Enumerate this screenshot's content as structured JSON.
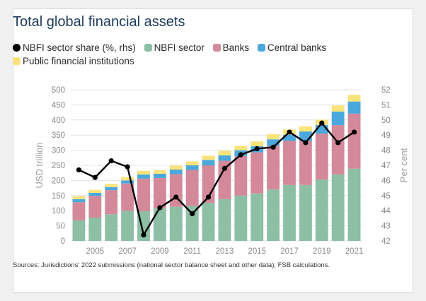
{
  "chart_data": {
    "type": "bar",
    "stacked": true,
    "title": "Total global financial assets",
    "ylabel": "USD trillion",
    "y2label": "Per cent",
    "ylim": [
      0,
      500
    ],
    "y2lim": [
      42,
      52
    ],
    "yticks": [
      "0",
      "50",
      "100",
      "150",
      "200",
      "250",
      "300",
      "350",
      "400",
      "450",
      "500"
    ],
    "y2ticks": [
      "42",
      "43",
      "44",
      "45",
      "46",
      "47",
      "48",
      "49",
      "50",
      "51",
      "52"
    ],
    "categories": [
      2004,
      2005,
      2006,
      2007,
      2008,
      2009,
      2010,
      2011,
      2012,
      2013,
      2014,
      2015,
      2016,
      2017,
      2018,
      2019,
      2020,
      2021
    ],
    "xtick_labels": [
      "2005",
      "2007",
      "2009",
      "2011",
      "2013",
      "2015",
      "2017",
      "2019",
      "2021"
    ],
    "series": [
      {
        "name": "NBFI sector",
        "color": "#8dbfa4",
        "values": [
          68,
          77,
          88,
          100,
          98,
          108,
          113,
          116,
          126,
          138,
          150,
          157,
          170,
          185,
          185,
          203,
          220,
          239
        ]
      },
      {
        "name": "Banks",
        "color": "#d4899a",
        "values": [
          60,
          72,
          80,
          90,
          108,
          100,
          108,
          119,
          124,
          127,
          130,
          136,
          144,
          146,
          145,
          152,
          163,
          182
        ]
      },
      {
        "name": "Central banks",
        "color": "#4aa8dc",
        "values": [
          10,
          10,
          10,
          10,
          14,
          14,
          15,
          15,
          18,
          18,
          20,
          20,
          22,
          20,
          32,
          28,
          45,
          40
        ]
      },
      {
        "name": "Public financial institutions",
        "color": "#f9e37a",
        "values": [
          10,
          10,
          11,
          11,
          12,
          12,
          13,
          13,
          14,
          15,
          15,
          16,
          17,
          17,
          17,
          18,
          20,
          22
        ]
      }
    ],
    "line": {
      "name": "NBFI sector share (%, rhs)",
      "axis": "right",
      "color": "#000000",
      "values": [
        46.7,
        46.2,
        47.3,
        46.9,
        42.4,
        44.2,
        44.9,
        43.8,
        44.9,
        46.8,
        47.7,
        48.1,
        48.2,
        49.2,
        48.5,
        49.8,
        48.5,
        49.2
      ]
    },
    "legend_position": "top",
    "grid": true,
    "source": "Sources: Jurisdictions' 2022 submissions (national sector balance sheet and other data); FSB calculations."
  }
}
